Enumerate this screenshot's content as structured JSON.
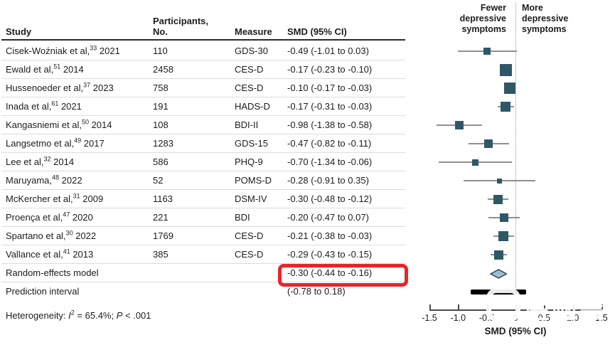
{
  "table": {
    "headers": {
      "study": "Study",
      "participants": "Participants,\nNo.",
      "measure": "Measure",
      "smd": "SMD (95% CI)"
    }
  },
  "chart_data": {
    "type": "forest",
    "xlabel": "SMD (95% CI)",
    "xlim": [
      -1.5,
      1.5
    ],
    "tick_values": [
      -1.5,
      -1.0,
      -0.5,
      0,
      0.5,
      1.0,
      1.5
    ],
    "tick_labels": [
      "-1.5",
      "-1.0",
      "-0.5",
      "0",
      "0.5",
      "1.0",
      "1.5"
    ],
    "left_header": "Fewer\ndepressive\nsymptoms",
    "right_header": "More\ndepressive\nsymptoms",
    "marker_color": "#2f5866",
    "ci_color": "#8f8f8f",
    "diamond_fill": "#9fbdcd",
    "diamond_stroke": "#2b4a5e",
    "rows": [
      {
        "study": "Cisek-Woźniak et al,",
        "ref": "33",
        "year": "2021",
        "n": "110",
        "measure": "GDS-30",
        "smd_text": "-0.49 (-1.01 to 0.03)",
        "est": -0.49,
        "lo": -1.01,
        "hi": 0.03,
        "size": 10
      },
      {
        "study": "Ewald et al,",
        "ref": "51",
        "year": "2014",
        "n": "2458",
        "measure": "CES-D",
        "smd_text": "-0.17 (-0.23 to -0.10)",
        "est": -0.17,
        "lo": -0.23,
        "hi": -0.1,
        "size": 17
      },
      {
        "study": "Hussenoeder et al,",
        "ref": "37",
        "year": "2023",
        "n": "758",
        "measure": "CES-D",
        "smd_text": "-0.10 (-0.17 to -0.03)",
        "est": -0.1,
        "lo": -0.17,
        "hi": -0.03,
        "size": 16
      },
      {
        "study": "Inada et al,",
        "ref": "61",
        "year": "2021",
        "n": "191",
        "measure": "HADS-D",
        "smd_text": "-0.17 (-0.31 to -0.03)",
        "est": -0.17,
        "lo": -0.31,
        "hi": -0.03,
        "size": 14
      },
      {
        "study": "Kangasniemi et al,",
        "ref": "50",
        "year": "2014",
        "n": "108",
        "measure": "BDI-II",
        "smd_text": "-0.98 (-1.38 to -0.58)",
        "est": -0.98,
        "lo": -1.38,
        "hi": -0.58,
        "size": 12
      },
      {
        "study": "Langsetmo et al,",
        "ref": "49",
        "year": "2017",
        "n": "1283",
        "measure": "GDS-15",
        "smd_text": "-0.47 (-0.82 to -0.11)",
        "est": -0.47,
        "lo": -0.82,
        "hi": -0.11,
        "size": 12
      },
      {
        "study": "Lee et al,",
        "ref": "32",
        "year": "2014",
        "n": "586",
        "measure": "PHQ-9",
        "smd_text": "-0.70 (-1.34 to -0.06)",
        "est": -0.7,
        "lo": -1.34,
        "hi": -0.06,
        "size": 9
      },
      {
        "study": "Maruyama,",
        "ref": "48",
        "year": "2022",
        "n": "52",
        "measure": "POMS-D",
        "smd_text": "-0.28 (-0.91 to 0.35)",
        "est": -0.28,
        "lo": -0.91,
        "hi": 0.35,
        "size": 7
      },
      {
        "study": "McKercher et al,",
        "ref": "31",
        "year": "2009",
        "n": "1163",
        "measure": "DSM-IV",
        "smd_text": "-0.30 (-0.48 to -0.12)",
        "est": -0.3,
        "lo": -0.48,
        "hi": -0.12,
        "size": 13
      },
      {
        "study": "Proença et al,",
        "ref": "47",
        "year": "2020",
        "n": "221",
        "measure": "BDI",
        "smd_text": "-0.20 (-0.47 to 0.07)",
        "est": -0.2,
        "lo": -0.47,
        "hi": 0.07,
        "size": 12
      },
      {
        "study": "Spartano et al,",
        "ref": "30",
        "year": "2022",
        "n": "1769",
        "measure": "CES-D",
        "smd_text": "-0.21 (-0.38 to -0.03)",
        "est": -0.21,
        "lo": -0.38,
        "hi": -0.03,
        "size": 14
      },
      {
        "study": "Vallance et al,",
        "ref": "41",
        "year": "2013",
        "n": "385",
        "measure": "CES-D",
        "smd_text": "-0.29 (-0.43 to -0.15)",
        "est": -0.29,
        "lo": -0.43,
        "hi": -0.15,
        "size": 13
      }
    ],
    "summary": {
      "label": "Random-effects model",
      "smd_text": "-0.30 (-0.44 to -0.16)",
      "est": -0.3,
      "lo": -0.44,
      "hi": -0.16
    },
    "prediction": {
      "label": "Prediction interval",
      "smd_text": "(-0.78 to 0.18)",
      "lo": -0.78,
      "hi": 0.18
    }
  },
  "footer": {
    "het_prefix": "Heterogeneity: ",
    "i_label": "I",
    "i_sup": "2",
    "het_mid": " = 65.4%; ",
    "p_label": "P",
    "het_suffix": " < .001"
  },
  "highlight": {
    "color": "#e8242b"
  },
  "watermark": {
    "text": "医咖会"
  }
}
